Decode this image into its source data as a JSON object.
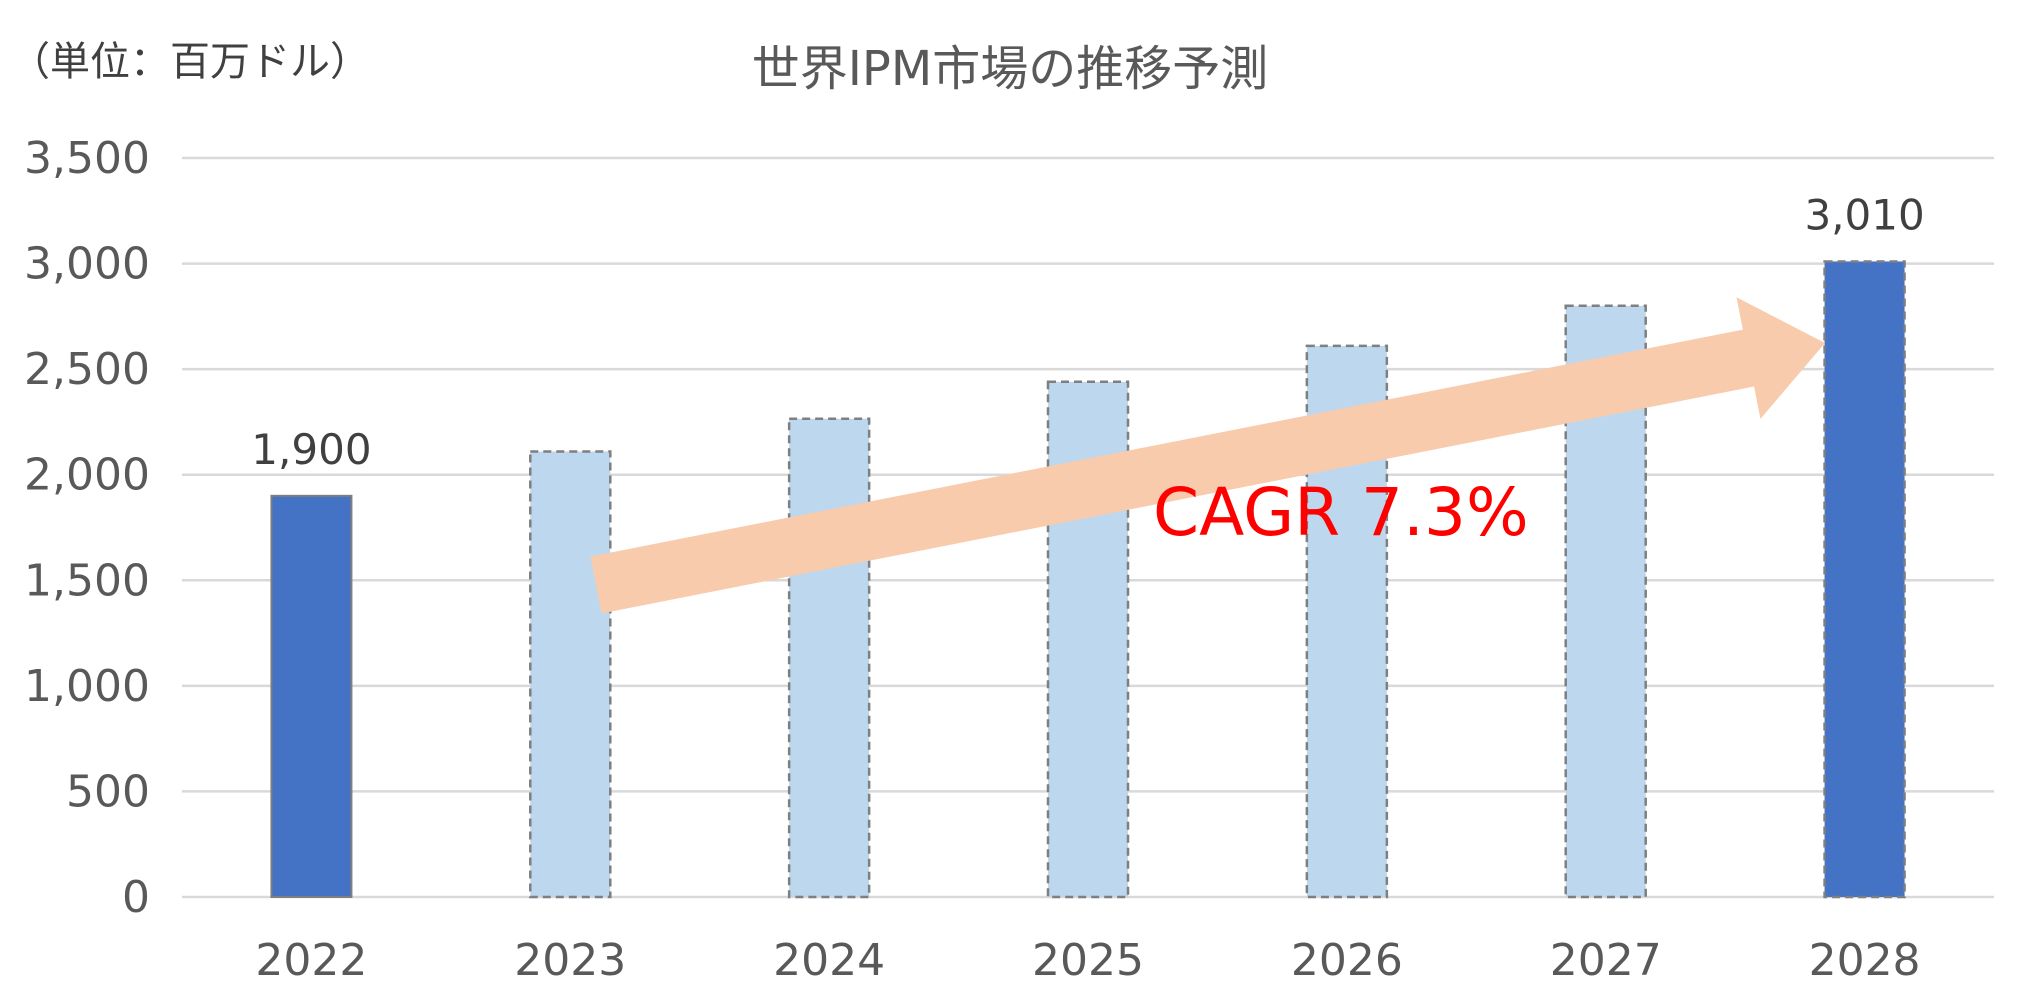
{
  "chart_data": {
    "type": "bar",
    "title": "世界IPM市場の推移予測",
    "unit_label": "（単位：百万ドル）",
    "xlabel": "",
    "ylabel": "",
    "categories": [
      "2022",
      "2023",
      "2024",
      "2025",
      "2026",
      "2027",
      "2028"
    ],
    "values": [
      1900,
      2110,
      2265,
      2440,
      2610,
      2800,
      3010
    ],
    "bar_kind": [
      "actual",
      "forecast",
      "forecast",
      "forecast",
      "forecast",
      "forecast",
      "forecast_final"
    ],
    "data_labels": {
      "0": "1,900",
      "6": "3,010"
    },
    "ylim": [
      0,
      3500
    ],
    "yticks": [
      "0",
      "500",
      "1,000",
      "1,500",
      "2,000",
      "2,500",
      "3,000",
      "3,500"
    ],
    "grid": true,
    "legend": "none",
    "annotation": {
      "text": "CAGR 7.3%",
      "color": "#FF0000",
      "arrow_color": "#F8CBAD"
    },
    "colors": {
      "actual": "#4472C4",
      "forecast": "#BDD7EE",
      "forecast_border": "#7F7F7F",
      "grid": "#D9D9D9"
    }
  }
}
